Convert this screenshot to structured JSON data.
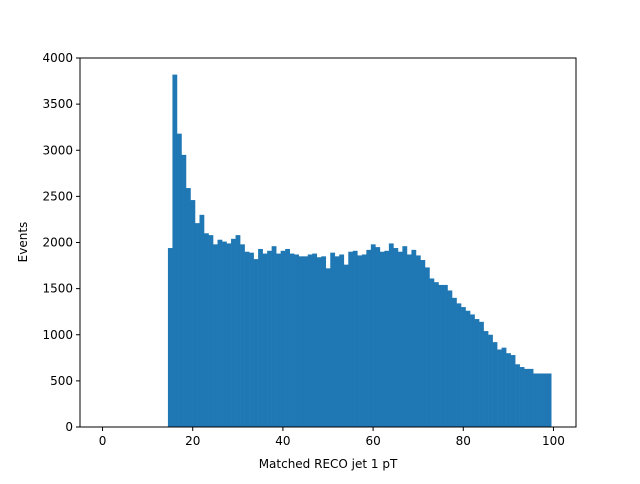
{
  "chart_data": {
    "type": "bar",
    "title": "",
    "xlabel": "Matched RECO jet 1 pT",
    "ylabel": "Events",
    "xlim": [
      -5,
      105
    ],
    "ylim": [
      0,
      4000
    ],
    "xticks": [
      0,
      20,
      40,
      60,
      80,
      100
    ],
    "yticks": [
      0,
      500,
      1000,
      1500,
      2000,
      2500,
      3000,
      3500,
      4000
    ],
    "grid": false,
    "legend": "none",
    "bar_color": "#1f77b4",
    "bin_edges_start": 14.5,
    "bin_width": 1,
    "values": [
      1940,
      3820,
      3180,
      2950,
      2590,
      2460,
      2210,
      2300,
      2100,
      2080,
      1980,
      2030,
      2010,
      1990,
      2040,
      2080,
      1980,
      1900,
      1890,
      1820,
      1930,
      1880,
      1910,
      1960,
      1880,
      1910,
      1930,
      1880,
      1870,
      1850,
      1850,
      1870,
      1880,
      1840,
      1850,
      1720,
      1890,
      1850,
      1870,
      1760,
      1900,
      1910,
      1860,
      1870,
      1920,
      1980,
      1950,
      1900,
      1910,
      1990,
      1940,
      1900,
      1960,
      1870,
      1920,
      1860,
      1810,
      1730,
      1610,
      1570,
      1540,
      1540,
      1480,
      1400,
      1340,
      1300,
      1260,
      1220,
      1170,
      1140,
      1040,
      1000,
      920,
      840,
      860,
      800,
      780,
      680,
      650,
      630,
      630,
      580,
      580,
      580,
      580
    ]
  }
}
